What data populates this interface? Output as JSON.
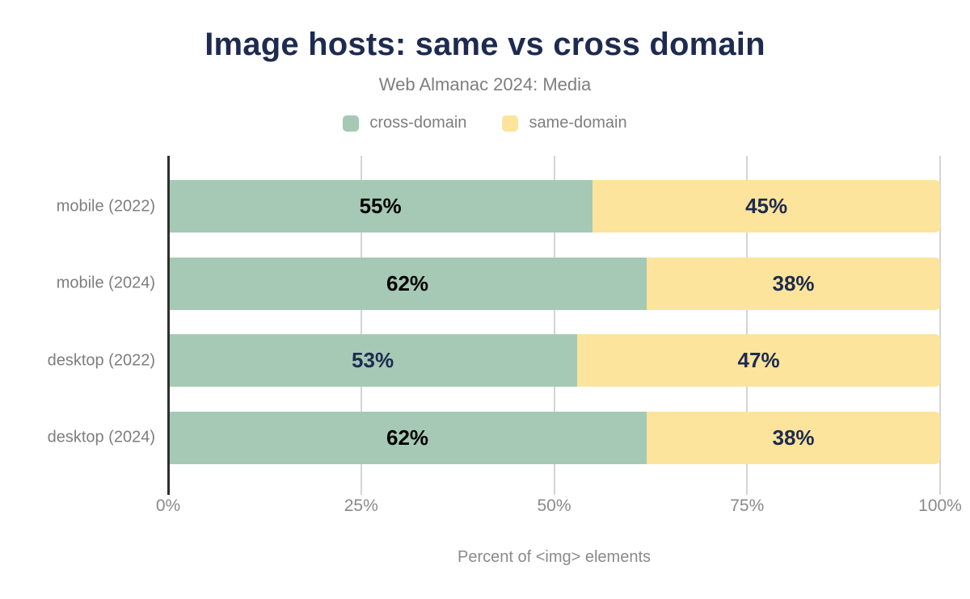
{
  "title": "Image hosts: same vs cross domain",
  "subtitle": "Web Almanac 2024: Media",
  "legend": [
    {
      "label": "cross-domain",
      "color": "#a5c9b5"
    },
    {
      "label": "same-domain",
      "color": "#fce49c"
    }
  ],
  "xaxis": {
    "title": "Percent of <img> elements",
    "ticks": [
      {
        "label": "0%",
        "value": 0
      },
      {
        "label": "25%",
        "value": 25
      },
      {
        "label": "50%",
        "value": 50
      },
      {
        "label": "75%",
        "value": 75
      },
      {
        "label": "100%",
        "value": 100
      }
    ]
  },
  "chart_data": {
    "type": "bar",
    "orientation": "horizontal",
    "stacked": true,
    "title": "Image hosts: same vs cross domain",
    "subtitle": "Web Almanac 2024: Media",
    "xlabel": "Percent of <img> elements",
    "ylabel": "",
    "xlim": [
      0,
      100
    ],
    "grid": true,
    "legend_position": "top",
    "categories": [
      "mobile (2022)",
      "mobile (2024)",
      "desktop (2022)",
      "desktop (2024)"
    ],
    "series": [
      {
        "name": "cross-domain",
        "color": "#a5c9b5",
        "values": [
          55,
          62,
          53,
          62
        ],
        "data_labels": [
          "55%",
          "62%",
          "53%",
          "62%"
        ],
        "data_label_colors": [
          "#000000",
          "#000000",
          "#1e2b50",
          "#000000"
        ]
      },
      {
        "name": "same-domain",
        "color": "#fce49c",
        "values": [
          45,
          38,
          47,
          38
        ],
        "data_labels": [
          "45%",
          "38%",
          "47%",
          "38%"
        ],
        "data_label_colors": [
          "#1e2b50",
          "#1e2b50",
          "#1e2b50",
          "#1e2b50"
        ]
      }
    ]
  },
  "colors": {
    "navy": "#1e2b50",
    "gray_text": "#7e7e7e",
    "tick_text": "#8a8a8a",
    "gridline": "#d4d4d4",
    "axis_line": "#2e2e2e",
    "background": "#ffffff"
  }
}
